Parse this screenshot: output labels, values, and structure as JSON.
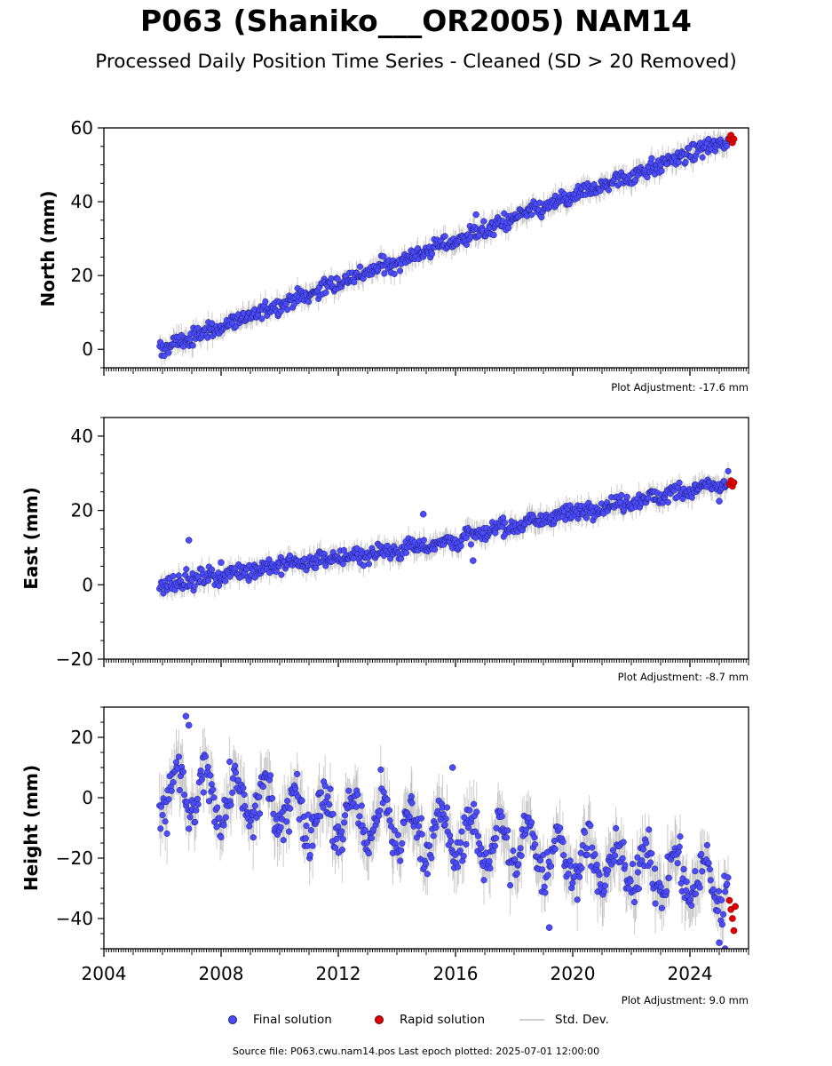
{
  "title": "P063 (Shaniko___OR2005) NAM14",
  "subtitle": "Processed Daily Position Time Series - Cleaned (SD > 20 Removed)",
  "footer": "Source file: P063.cwu.nam14.pos  Last epoch plotted: 2025-07-01 12:00:00",
  "legend": {
    "final": "Final solution",
    "rapid": "Rapid solution",
    "std": "Std. Dev."
  },
  "colors": {
    "final": "#4b4bff",
    "final_edge": "#1a1a66",
    "rapid": "#e00000",
    "std": "#9a9a9a"
  },
  "chart_data": [
    {
      "type": "scatter",
      "ylabel": "North (mm)",
      "adjustment": "Plot Adjustment: -17.6 mm",
      "xlim": [
        2004,
        2026
      ],
      "ylim": [
        -5,
        60
      ],
      "yticks": [
        0,
        20,
        40,
        60
      ],
      "start": [
        2005.9,
        0
      ],
      "end": [
        2025.3,
        56.5
      ],
      "noise": 1.6,
      "seasonal": 0.4,
      "series": [
        {
          "name": "Final solution",
          "x": [
            2005.9,
            2008,
            2010,
            2012,
            2014,
            2016,
            2018,
            2020,
            2022,
            2024,
            2025.3
          ],
          "y": [
            0,
            6.2,
            12.1,
            18.0,
            23.8,
            29.5,
            35.5,
            41.4,
            47.2,
            53.0,
            56.5
          ]
        },
        {
          "name": "Rapid solution",
          "x": [
            2025.35,
            2025.4,
            2025.45,
            2025.5
          ],
          "y": [
            57,
            58,
            56,
            57
          ]
        }
      ],
      "outliers": [
        [
          2016.7,
          36.5
        ],
        [
          2017.3,
          31
        ]
      ]
    },
    {
      "type": "scatter",
      "ylabel": "East (mm)",
      "adjustment": "Plot Adjustment: -8.7 mm",
      "xlim": [
        2004,
        2026
      ],
      "ylim": [
        -20,
        45
      ],
      "yticks": [
        -20,
        0,
        20,
        40
      ],
      "start": [
        2005.9,
        0
      ],
      "end": [
        2025.3,
        27
      ],
      "noise": 1.6,
      "seasonal": 0.5,
      "series": [
        {
          "name": "Final solution",
          "x": [
            2005.9,
            2008,
            2010,
            2012,
            2014,
            2016,
            2018,
            2020,
            2022,
            2024,
            2025.3
          ],
          "y": [
            0,
            2.6,
            5.3,
            7.2,
            9.5,
            12.0,
            16.0,
            19.5,
            22.5,
            25.5,
            27.0
          ]
        },
        {
          "name": "Rapid solution",
          "x": [
            2025.35,
            2025.4,
            2025.45,
            2025.5
          ],
          "y": [
            27,
            28,
            26.5,
            27.5
          ]
        }
      ],
      "outliers": [
        [
          2006.9,
          12
        ],
        [
          2014.9,
          19
        ],
        [
          2016.6,
          6.5
        ],
        [
          2025.0,
          22.5
        ],
        [
          2008.0,
          6
        ]
      ]
    },
    {
      "type": "scatter",
      "ylabel": "Height (mm)",
      "adjustment": "Plot Adjustment: 9.0 mm",
      "xlim": [
        2004,
        2026
      ],
      "ylim": [
        -50,
        30
      ],
      "yticks": [
        -40,
        -20,
        0,
        20
      ],
      "xticks": [
        2004,
        2008,
        2012,
        2016,
        2020,
        2024
      ],
      "start": [
        2005.9,
        2
      ],
      "end": [
        2025.3,
        -30
      ],
      "noise": 5,
      "seasonal": 8,
      "series": [
        {
          "name": "Final solution",
          "x": [
            2005.9,
            2008,
            2010,
            2012,
            2014,
            2016,
            2018,
            2020,
            2022,
            2024,
            2025.3
          ],
          "y": [
            2,
            0,
            -3,
            -6,
            -9,
            -13,
            -16,
            -20,
            -23,
            -26,
            -30
          ]
        },
        {
          "name": "Rapid solution",
          "x": [
            2025.35,
            2025.4,
            2025.45,
            2025.5,
            2025.55
          ],
          "y": [
            -34,
            -37,
            -40,
            -44,
            -36
          ]
        }
      ],
      "outliers": [
        [
          2006.8,
          27
        ],
        [
          2006.9,
          24
        ],
        [
          2015.9,
          10
        ],
        [
          2019.2,
          -43
        ],
        [
          2025.0,
          -48
        ],
        [
          2025.2,
          -50
        ]
      ]
    }
  ]
}
